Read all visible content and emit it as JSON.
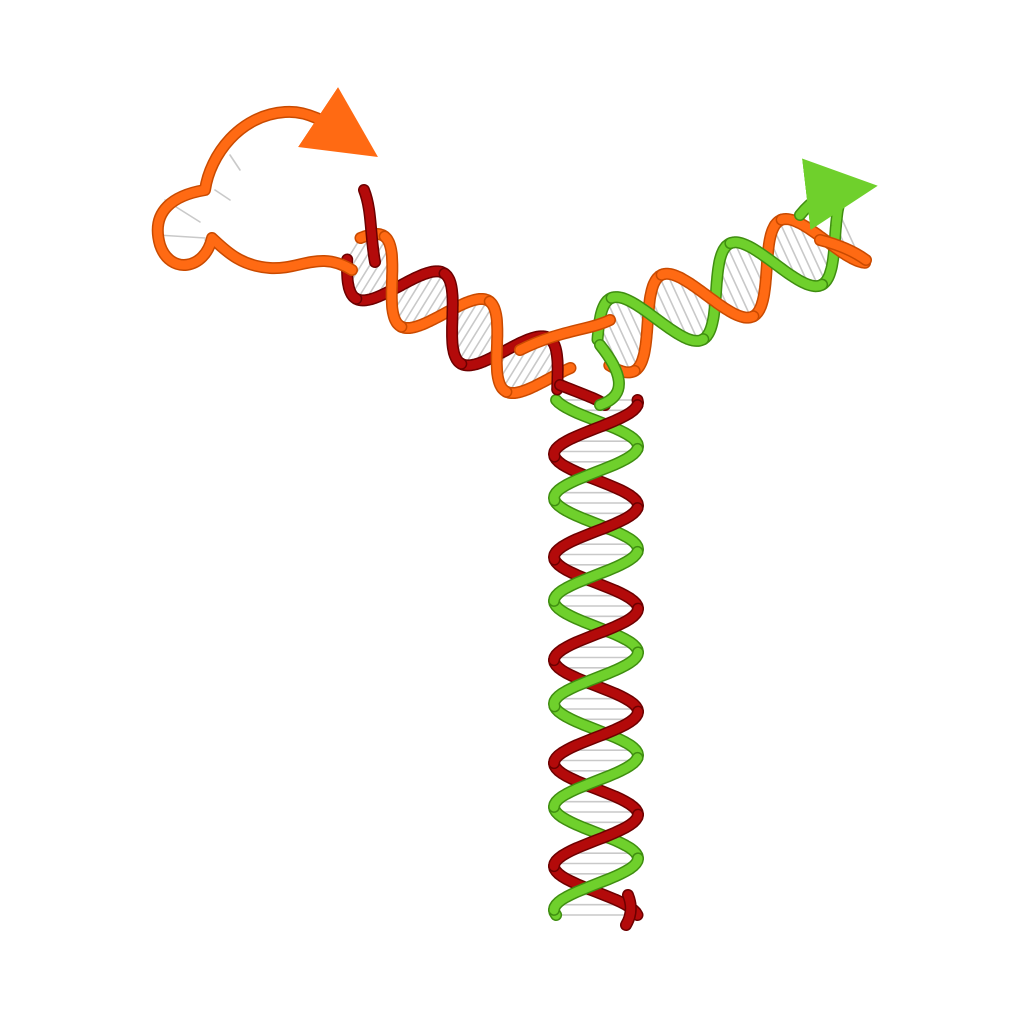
{
  "image": {
    "subject": "three-way-junction-nucleic-acid-ribbon",
    "background": "#ffffff"
  },
  "strands": [
    {
      "name": "strand-a",
      "color": "#ff6a13",
      "shade": "#c94a00",
      "icon": "ribbon-with-arrowhead"
    },
    {
      "name": "strand-b",
      "color": "#b30a0a",
      "shade": "#6d0000",
      "icon": "ribbon"
    },
    {
      "name": "strand-c",
      "color": "#6fd02c",
      "shade": "#3f8e10",
      "icon": "ribbon-with-arrowhead"
    }
  ],
  "base_pair_color": "#c9c9c9",
  "helix_counts": {
    "vertical_stem_turns": 5,
    "left_arm_turns": 2,
    "right_arm_turns": 2
  }
}
